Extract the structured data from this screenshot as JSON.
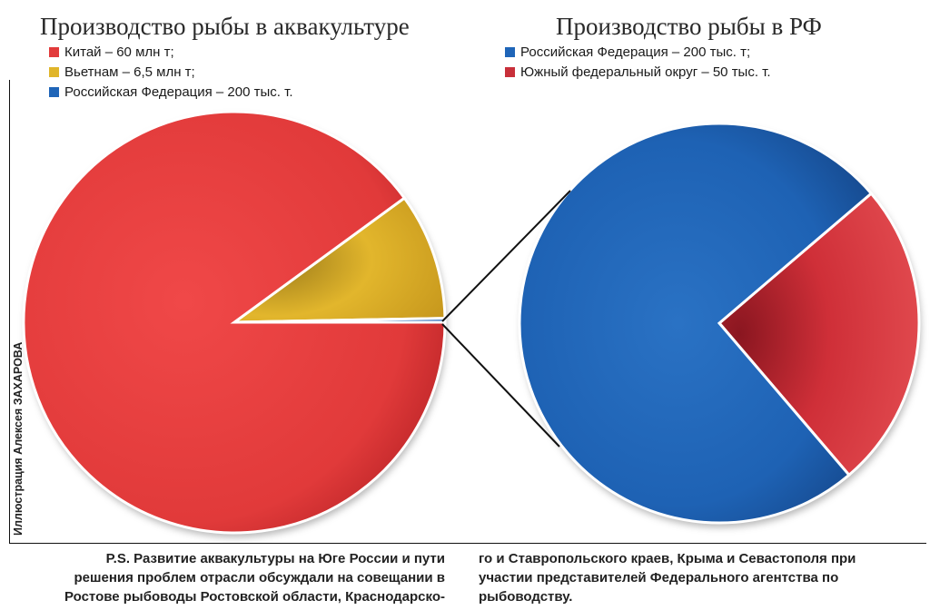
{
  "chart_data": [
    {
      "type": "pie",
      "title": "Производство рыбы в аквакультуре",
      "legend": [
        {
          "label": "Китай – 60 млн т;",
          "color": "#e23b3b"
        },
        {
          "label": "Вьетнам – 6,5 млн т;",
          "color": "#e0b52a"
        },
        {
          "label": "Российская Федерация – 200 тыс. т.",
          "color": "#1f65b8"
        }
      ],
      "slices": [
        {
          "name": "Китай",
          "value": 60,
          "unit": "млн т",
          "color": "#e23b3b"
        },
        {
          "name": "Вьетнам",
          "value": 6.5,
          "unit": "млн т",
          "color": "#e0b52a"
        },
        {
          "name": "Российская Федерация",
          "value": 0.2,
          "unit": "млн т",
          "color": "#1f65b8"
        }
      ]
    },
    {
      "type": "pie",
      "title": "Производство рыбы в РФ",
      "legend": [
        {
          "label": "Российская Федерация – 200 тыс. т;",
          "color": "#1f65b8"
        },
        {
          "label": "Южный федеральный округ – 50 тыс. т.",
          "color": "#c8303a"
        }
      ],
      "slices": [
        {
          "name": "Российская Федерация",
          "value": 150,
          "unit": "тыс. т",
          "color": "#1f65b8"
        },
        {
          "name": "Южный федеральный округ",
          "value": 50,
          "unit": "тыс. т",
          "color": "#c8303a"
        }
      ]
    }
  ],
  "credit": "Иллюстрация Алексея ЗАХАРОВА",
  "caption": {
    "left_lines": [
      "P.S. Развитие аквакультуры на Юге России и пути",
      "решения проблем отрасли обсуждали на совещании в",
      "Ростове рыбоводы Ростовской области, Краснодарско-"
    ],
    "right_lines": [
      "го и Ставропольского краев, Крыма и Севастополя при",
      "участии представителей Федерального агентства по",
      "рыбоводству."
    ]
  }
}
